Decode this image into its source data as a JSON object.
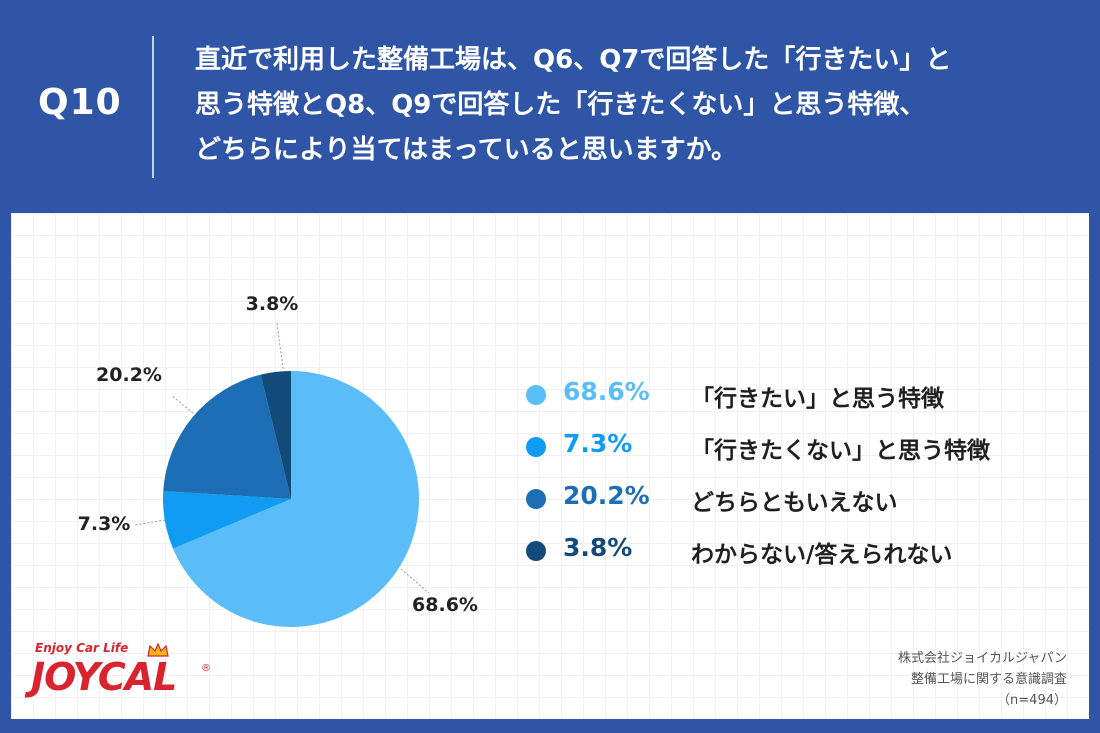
{
  "header": {
    "qnum": "Q10",
    "question_lines": [
      "直近で利用した整備工場は、Q6、Q7で回答した「行きたい」と",
      "思う特徴とQ8、Q9で回答した「行きたくない」と思う特徴、",
      "どちらにより当てはまっていると思いますか。"
    ]
  },
  "chart_data": {
    "type": "pie",
    "slices": [
      {
        "label": "「行きたい」と思う特徴",
        "value": 68.6,
        "display": "68.6%",
        "color": "#5bbdf7"
      },
      {
        "label": "「行きたくない」と思う特徴",
        "value": 7.3,
        "display": "7.3%",
        "color": "#0f9cf2"
      },
      {
        "label": "どちらともいえない",
        "value": 20.2,
        "display": "20.2%",
        "color": "#1d6fb5"
      },
      {
        "label": "わからない/答えられない",
        "value": 3.8,
        "display": "3.8%",
        "color": "#124a7a"
      }
    ],
    "start": "12 o'clock",
    "direction": "clockwise",
    "legend_position": "right"
  },
  "legend_value_colors": [
    "#5bbdf7",
    "#0f9cf2",
    "#1d6fb5",
    "#124a7a"
  ],
  "source": {
    "line1": "株式会社ジョイカルジャパン",
    "line2": "整備工場に関する意識調査",
    "line3": "（n=494）"
  },
  "logo": {
    "tagline": "Enjoy Car Life",
    "wordmark": "JOYCAL",
    "registered": "®",
    "brand_color": "#d9232e"
  }
}
